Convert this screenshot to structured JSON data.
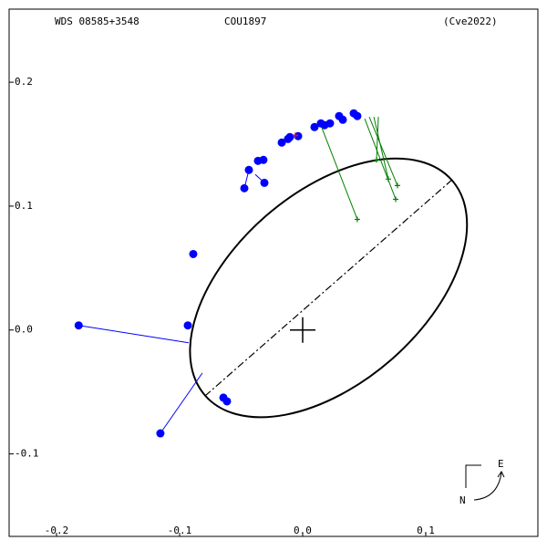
{
  "chart_data": {
    "type": "orbit",
    "labels": [
      "WDS 08585+3548",
      "COU1897",
      "(Cve2022)"
    ],
    "compass": [
      "E",
      "N"
    ],
    "xlim": [
      -0.2385,
      0.1911
    ],
    "ylim": [
      -0.1666,
      0.259
    ],
    "xticks": [
      -0.2,
      -0.1,
      {
        "value": 0,
        "label": "0.0"
      },
      0.1
    ],
    "yticks": [
      0.2,
      0.1,
      {
        "value": 0,
        "label": "0.0"
      },
      -0.1
    ],
    "orbit": {
      "center": [
        0.021,
        0.034
      ],
      "a": 0.133,
      "b": 0.077,
      "angle": 41,
      "color": "#000000"
    },
    "series": [
      {
        "color": "#0000ff",
        "marker": "dot",
        "x": [
          -0.182,
          -0.1156,
          -0.0933,
          -0.0889,
          -0.0644,
          -0.0615,
          -0.0474,
          -0.0311,
          -0.0437,
          -0.0363,
          -0.0319,
          -0.017,
          -0.0119,
          -0.0104,
          -0.0037,
          0.0096,
          0.0148,
          0.0178,
          0.0222,
          0.0296,
          0.0326,
          0.0415,
          0.0444
        ],
        "values": [
          0.0037,
          -0.0834,
          0.0037,
          0.0613,
          -0.0546,
          -0.0576,
          0.1144,
          0.1188,
          0.1292,
          0.1365,
          0.1373,
          0.1513,
          0.1542,
          0.1557,
          0.1565,
          0.1638,
          0.1668,
          0.1653,
          0.1668,
          0.1727,
          0.1697,
          0.1749,
          0.1727
        ],
        "fit_x": [
          -0.0926,
          -0.0815,
          null,
          null,
          null,
          null,
          -0.0437,
          -0.0385,
          null,
          null,
          null,
          null,
          null,
          null,
          null,
          null,
          null,
          null,
          null,
          null,
          null,
          null,
          null
        ],
        "fit_y": [
          -0.0103,
          -0.0347,
          null,
          null,
          null,
          null,
          0.129,
          0.1255,
          null,
          null,
          null,
          null,
          null,
          null,
          null,
          null,
          null,
          null,
          null,
          null,
          null,
          null,
          null
        ]
      },
      {
        "color": "#008000",
        "marker": "plus",
        "x": [
          0.0444,
          0.0756,
          0.077,
          0.0696,
          0.06
        ],
        "values": [
          0.0893,
          0.1055,
          0.1166,
          0.1218,
          0.1373
        ],
        "fit_x": [
          0.0156,
          0.0504,
          0.0541,
          0.0578,
          0.0615
        ],
        "fit_y": [
          0.1631,
          0.1705,
          0.172,
          0.172,
          0.172
        ]
      },
      {
        "color": "#ff0000",
        "marker": "plus",
        "x": [
          -0.0059
        ],
        "values": [
          0.1572
        ],
        "fit_x": [
          -0.0037
        ],
        "fit_y": [
          0.1565
        ]
      }
    ]
  }
}
